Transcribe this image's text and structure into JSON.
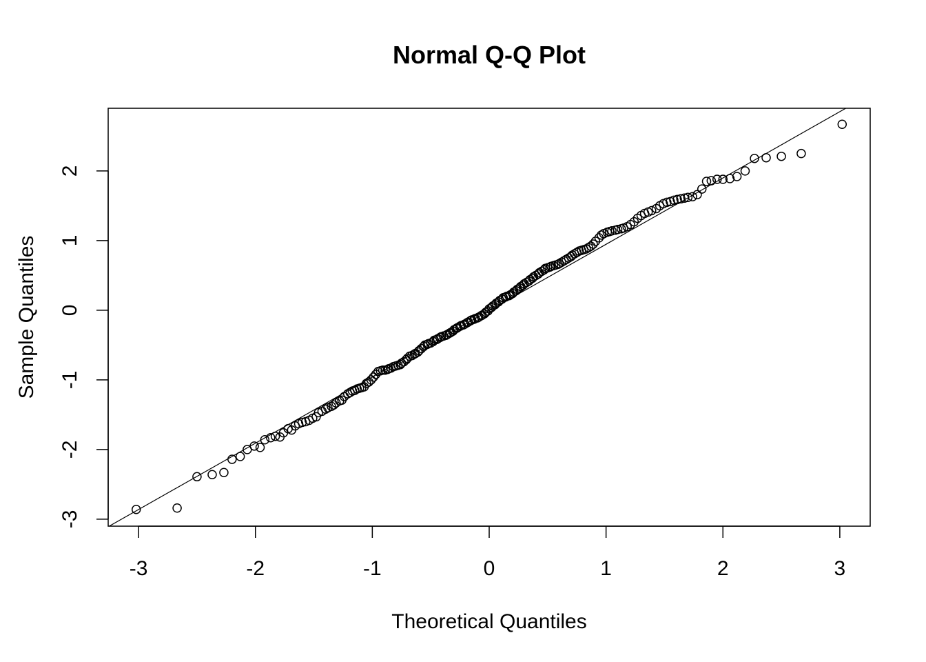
{
  "chart_data": {
    "type": "scatter",
    "title": "Normal Q-Q Plot",
    "xlabel": "Theoretical Quantiles",
    "ylabel": "Sample Quantiles",
    "xlim": [
      -3.26,
      3.26
    ],
    "ylim": [
      -3.1,
      2.9
    ],
    "x_ticks": [
      -3,
      -2,
      -1,
      0,
      1,
      2,
      3
    ],
    "x_tick_labels": [
      "-3",
      "-2",
      "-1",
      "0",
      "1",
      "2",
      "3"
    ],
    "y_ticks": [
      -3,
      -2,
      -1,
      0,
      1,
      2
    ],
    "y_tick_labels": [
      "-3",
      "-2",
      "-1",
      "0",
      "1",
      "2"
    ],
    "grid": false,
    "legend": "none",
    "marker": "open-circle",
    "reference_line": {
      "slope": 0.952,
      "intercept": -0.005
    },
    "points": [
      [
        -3.02,
        -2.86
      ],
      [
        -2.67,
        -2.84
      ],
      [
        -2.5,
        -2.39
      ],
      [
        -2.37,
        -2.36
      ],
      [
        -2.27,
        -2.33
      ],
      [
        -2.2,
        -2.14
      ],
      [
        -2.13,
        -2.1
      ],
      [
        -2.07,
        -2.0
      ],
      [
        -2.01,
        -1.95
      ],
      [
        -1.96,
        -1.97
      ],
      [
        -1.92,
        -1.86
      ],
      [
        -1.87,
        -1.83
      ],
      [
        -1.83,
        -1.81
      ],
      [
        -1.79,
        -1.82
      ],
      [
        -1.76,
        -1.76
      ],
      [
        -1.72,
        -1.7
      ],
      [
        -1.69,
        -1.72
      ],
      [
        -1.66,
        -1.66
      ],
      [
        -1.63,
        -1.63
      ],
      [
        -1.6,
        -1.61
      ],
      [
        -1.57,
        -1.6
      ],
      [
        -1.54,
        -1.58
      ],
      [
        -1.51,
        -1.55
      ],
      [
        -1.48,
        -1.53
      ],
      [
        -1.46,
        -1.47
      ],
      [
        -1.43,
        -1.45
      ],
      [
        -1.4,
        -1.42
      ],
      [
        -1.38,
        -1.4
      ],
      [
        -1.35,
        -1.38
      ],
      [
        -1.33,
        -1.36
      ],
      [
        -1.31,
        -1.33
      ],
      [
        -1.28,
        -1.3
      ],
      [
        -1.26,
        -1.29
      ],
      [
        -1.24,
        -1.24
      ],
      [
        -1.21,
        -1.2
      ],
      [
        -1.19,
        -1.18
      ],
      [
        -1.17,
        -1.16
      ],
      [
        -1.15,
        -1.15
      ],
      [
        -1.13,
        -1.13
      ],
      [
        -1.11,
        -1.12
      ],
      [
        -1.09,
        -1.11
      ],
      [
        -1.07,
        -1.1
      ],
      [
        -1.05,
        -1.05
      ],
      [
        -1.03,
        -1.03
      ],
      [
        -1.01,
        -1.0
      ],
      [
        -0.99,
        -0.96
      ],
      [
        -0.97,
        -0.92
      ],
      [
        -0.95,
        -0.88
      ],
      [
        -0.93,
        -0.87
      ],
      [
        -0.91,
        -0.86
      ],
      [
        -0.89,
        -0.86
      ],
      [
        -0.87,
        -0.85
      ],
      [
        -0.86,
        -0.84
      ],
      [
        -0.84,
        -0.83
      ],
      [
        -0.82,
        -0.81
      ],
      [
        -0.8,
        -0.8
      ],
      [
        -0.78,
        -0.79
      ],
      [
        -0.76,
        -0.78
      ],
      [
        -0.75,
        -0.76
      ],
      [
        -0.73,
        -0.74
      ],
      [
        -0.71,
        -0.71
      ],
      [
        -0.7,
        -0.69
      ],
      [
        -0.68,
        -0.66
      ],
      [
        -0.66,
        -0.65
      ],
      [
        -0.64,
        -0.63
      ],
      [
        -0.63,
        -0.62
      ],
      [
        -0.61,
        -0.6
      ],
      [
        -0.6,
        -0.58
      ],
      [
        -0.58,
        -0.55
      ],
      [
        -0.56,
        -0.52
      ],
      [
        -0.55,
        -0.5
      ],
      [
        -0.53,
        -0.49
      ],
      [
        -0.52,
        -0.48
      ],
      [
        -0.5,
        -0.47
      ],
      [
        -0.48,
        -0.45
      ],
      [
        -0.47,
        -0.43
      ],
      [
        -0.45,
        -0.42
      ],
      [
        -0.44,
        -0.41
      ],
      [
        -0.42,
        -0.39
      ],
      [
        -0.41,
        -0.38
      ],
      [
        -0.39,
        -0.37
      ],
      [
        -0.37,
        -0.36
      ],
      [
        -0.36,
        -0.35
      ],
      [
        -0.34,
        -0.33
      ],
      [
        -0.33,
        -0.32
      ],
      [
        -0.31,
        -0.3
      ],
      [
        -0.3,
        -0.28
      ],
      [
        -0.28,
        -0.26
      ],
      [
        -0.27,
        -0.25
      ],
      [
        -0.25,
        -0.23
      ],
      [
        -0.24,
        -0.22
      ],
      [
        -0.22,
        -0.21
      ],
      [
        -0.21,
        -0.2
      ],
      [
        -0.19,
        -0.18
      ],
      [
        -0.18,
        -0.17
      ],
      [
        -0.16,
        -0.15
      ],
      [
        -0.15,
        -0.14
      ],
      [
        -0.13,
        -0.13
      ],
      [
        -0.12,
        -0.12
      ],
      [
        -0.1,
        -0.11
      ],
      [
        -0.09,
        -0.1
      ],
      [
        -0.07,
        -0.08
      ],
      [
        -0.06,
        -0.07
      ],
      [
        -0.04,
        -0.05
      ],
      [
        -0.03,
        -0.03
      ],
      [
        -0.01,
        -0.01
      ],
      [
        0.0,
        0.02
      ],
      [
        0.02,
        0.04
      ],
      [
        0.03,
        0.06
      ],
      [
        0.05,
        0.08
      ],
      [
        0.06,
        0.1
      ],
      [
        0.08,
        0.12
      ],
      [
        0.09,
        0.14
      ],
      [
        0.11,
        0.16
      ],
      [
        0.12,
        0.18
      ],
      [
        0.14,
        0.19
      ],
      [
        0.15,
        0.2
      ],
      [
        0.17,
        0.21
      ],
      [
        0.18,
        0.22
      ],
      [
        0.2,
        0.24
      ],
      [
        0.21,
        0.26
      ],
      [
        0.23,
        0.28
      ],
      [
        0.24,
        0.3
      ],
      [
        0.26,
        0.32
      ],
      [
        0.27,
        0.34
      ],
      [
        0.29,
        0.36
      ],
      [
        0.3,
        0.38
      ],
      [
        0.32,
        0.4
      ],
      [
        0.34,
        0.42
      ],
      [
        0.35,
        0.44
      ],
      [
        0.37,
        0.46
      ],
      [
        0.38,
        0.48
      ],
      [
        0.4,
        0.5
      ],
      [
        0.42,
        0.52
      ],
      [
        0.43,
        0.54
      ],
      [
        0.45,
        0.56
      ],
      [
        0.47,
        0.58
      ],
      [
        0.48,
        0.6
      ],
      [
        0.5,
        0.61
      ],
      [
        0.52,
        0.62
      ],
      [
        0.53,
        0.63
      ],
      [
        0.55,
        0.64
      ],
      [
        0.57,
        0.65
      ],
      [
        0.59,
        0.66
      ],
      [
        0.6,
        0.67
      ],
      [
        0.62,
        0.69
      ],
      [
        0.64,
        0.71
      ],
      [
        0.66,
        0.73
      ],
      [
        0.68,
        0.75
      ],
      [
        0.7,
        0.77
      ],
      [
        0.71,
        0.79
      ],
      [
        0.73,
        0.81
      ],
      [
        0.75,
        0.83
      ],
      [
        0.77,
        0.85
      ],
      [
        0.79,
        0.86
      ],
      [
        0.81,
        0.87
      ],
      [
        0.83,
        0.88
      ],
      [
        0.85,
        0.9
      ],
      [
        0.87,
        0.92
      ],
      [
        0.89,
        0.95
      ],
      [
        0.91,
        0.99
      ],
      [
        0.94,
        1.04
      ],
      [
        0.96,
        1.08
      ],
      [
        0.98,
        1.1
      ],
      [
        1.01,
        1.12
      ],
      [
        1.03,
        1.13
      ],
      [
        1.05,
        1.14
      ],
      [
        1.08,
        1.15
      ],
      [
        1.1,
        1.16
      ],
      [
        1.13,
        1.17
      ],
      [
        1.15,
        1.18
      ],
      [
        1.18,
        1.2
      ],
      [
        1.21,
        1.23
      ],
      [
        1.24,
        1.27
      ],
      [
        1.27,
        1.32
      ],
      [
        1.3,
        1.36
      ],
      [
        1.33,
        1.39
      ],
      [
        1.36,
        1.41
      ],
      [
        1.39,
        1.43
      ],
      [
        1.43,
        1.46
      ],
      [
        1.46,
        1.5
      ],
      [
        1.49,
        1.53
      ],
      [
        1.52,
        1.55
      ],
      [
        1.55,
        1.56
      ],
      [
        1.58,
        1.58
      ],
      [
        1.61,
        1.59
      ],
      [
        1.64,
        1.6
      ],
      [
        1.67,
        1.61
      ],
      [
        1.7,
        1.62
      ],
      [
        1.74,
        1.63
      ],
      [
        1.78,
        1.66
      ],
      [
        1.82,
        1.74
      ],
      [
        1.86,
        1.85
      ],
      [
        1.9,
        1.86
      ],
      [
        1.95,
        1.88
      ],
      [
        2.0,
        1.88
      ],
      [
        2.06,
        1.89
      ],
      [
        2.12,
        1.92
      ],
      [
        2.19,
        2.0
      ],
      [
        2.27,
        2.18
      ],
      [
        2.37,
        2.19
      ],
      [
        2.5,
        2.21
      ],
      [
        2.67,
        2.25
      ],
      [
        3.02,
        2.67
      ]
    ]
  }
}
